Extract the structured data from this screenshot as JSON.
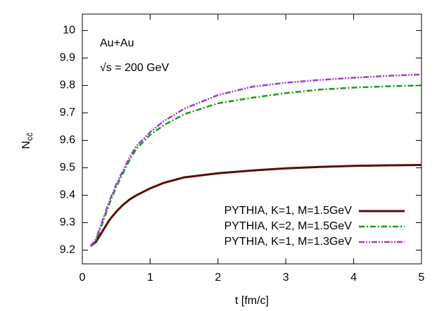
{
  "chart_data": {
    "type": "line",
    "xlabel": "t [fm/c]",
    "ylabel": "N",
    "ylabel_sub": "cc̄",
    "annotations": [
      "Au+Au",
      "√s = 200 GeV"
    ],
    "xlim": [
      0,
      5
    ],
    "xticks": [
      0,
      1,
      2,
      3,
      4,
      5
    ],
    "ylim": [
      9.15,
      10.06
    ],
    "yticks": [
      9.2,
      9.3,
      9.4,
      9.5,
      9.6,
      9.7,
      9.8,
      9.9,
      10
    ],
    "legend": "lower right",
    "x": [
      0.12,
      0.2,
      0.3,
      0.4,
      0.5,
      0.6,
      0.7,
      0.8,
      1.0,
      1.2,
      1.5,
      2,
      2.5,
      3,
      3.5,
      4,
      4.5,
      5
    ],
    "series": [
      {
        "name": "PYTHIA, K=1, M=1.5GeV",
        "color": "#5a0a0a",
        "dash": "solid",
        "values": [
          9.215,
          9.23,
          9.27,
          9.31,
          9.34,
          9.365,
          9.385,
          9.4,
          9.425,
          9.445,
          9.465,
          9.48,
          9.49,
          9.498,
          9.503,
          9.507,
          9.509,
          9.51
        ]
      },
      {
        "name": "PYTHIA, K=2, M=1.5GeV",
        "color": "#1a9a1a",
        "dash": "dashdot",
        "values": [
          9.215,
          9.235,
          9.3,
          9.37,
          9.43,
          9.48,
          9.53,
          9.57,
          9.62,
          9.655,
          9.695,
          9.735,
          9.755,
          9.772,
          9.785,
          9.792,
          9.797,
          9.8
        ]
      },
      {
        "name": "PYTHIA, K=1, M=1.3GeV",
        "color": "#9a40c8",
        "dash": "dashdotdot",
        "values": [
          9.215,
          9.24,
          9.31,
          9.38,
          9.44,
          9.49,
          9.54,
          9.58,
          9.63,
          9.67,
          9.715,
          9.765,
          9.795,
          9.81,
          9.82,
          9.828,
          9.835,
          9.84
        ]
      }
    ]
  }
}
